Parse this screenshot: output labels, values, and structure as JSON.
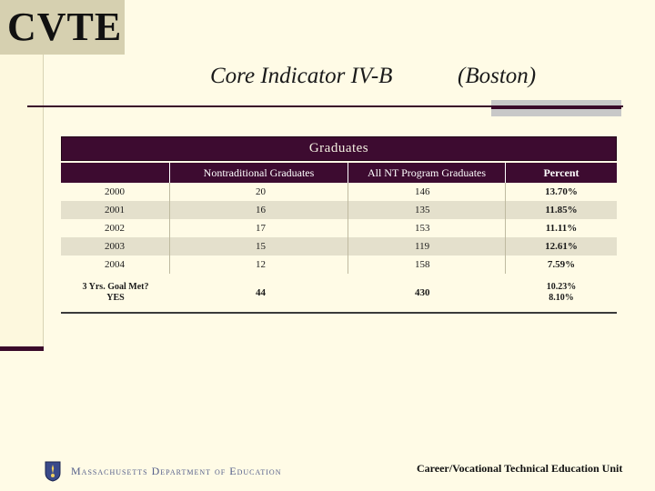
{
  "corner_label": "CVTE",
  "title": {
    "main": "Core Indicator IV-B",
    "location": "(Boston)"
  },
  "table": {
    "title": "Graduates",
    "headers": [
      "",
      "Nontraditional Graduates",
      "All NT Program Graduates",
      "Percent"
    ],
    "rows": [
      [
        "2000",
        "20",
        "146",
        "13.70%"
      ],
      [
        "2001",
        "16",
        "135",
        "11.85%"
      ],
      [
        "2002",
        "17",
        "153",
        "11.11%"
      ],
      [
        "2003",
        "15",
        "119",
        "12.61%"
      ],
      [
        "2004",
        "12",
        "158",
        "7.59%"
      ]
    ],
    "goal": {
      "label_line1": "3 Yrs. Goal Met?",
      "label_line2": "YES",
      "nontraditional": "44",
      "all_nt": "430",
      "percent_line1": "10.23%",
      "percent_line2": "8.10%"
    }
  },
  "footer": {
    "logo_text": "Massachusetts Department of Education",
    "unit": "Career/Vocational Technical Education Unit"
  },
  "colors": {
    "header_bg": "#3d0b30",
    "page_bg": "#fffbe6",
    "alt_row": "#e4e0cc",
    "accent_gray": "#c8c8c8"
  },
  "icons": {
    "seal": "massachusetts-seal-icon"
  }
}
